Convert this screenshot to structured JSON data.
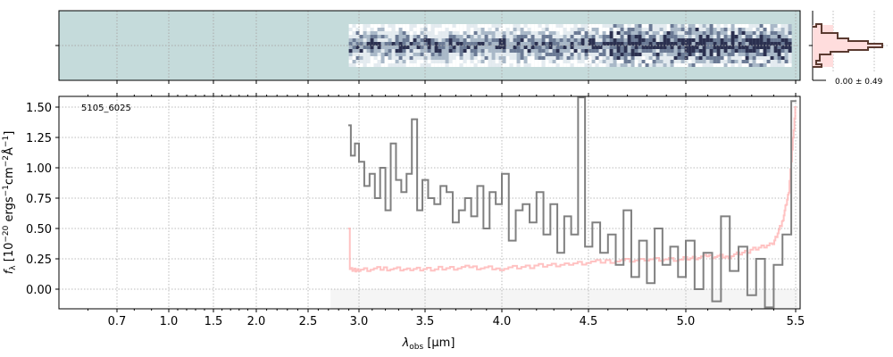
{
  "chart_data": {
    "type": "line",
    "object_label": "5105_6025",
    "xlabel": "λobs [μm]",
    "xlabel_parts": {
      "main": "λ",
      "sub": "obs",
      "unit": " [μm]"
    },
    "ylabel": "fλ [10^-20 ergs^-1 cm^-2 Å^-1]",
    "ylabel_parts": {
      "f": "f",
      "fsub": "λ",
      "a": " [10",
      "e1": "−20",
      "b": " ergs",
      "e2": "−1",
      "c": "cm",
      "e3": "−2",
      "d": "Å",
      "e4": "−1",
      "e": "]"
    },
    "xticks": [
      "0.7",
      "1.0",
      "1.5",
      "2.0",
      "2.5",
      "3.0",
      "3.5",
      "4.0",
      "4.5",
      "5.0",
      "5.5"
    ],
    "yticks": [
      "0.00",
      "0.25",
      "0.50",
      "0.75",
      "1.00",
      "1.25",
      "1.50"
    ],
    "ylim": [
      -0.16,
      1.59
    ],
    "grid": true,
    "series": [
      {
        "name": "flux",
        "color": "#808080",
        "x": [
          2.9,
          2.94,
          2.98,
          3.02,
          3.06,
          3.1,
          3.14,
          3.18,
          3.22,
          3.26,
          3.3,
          3.34,
          3.38,
          3.42,
          3.46,
          3.5,
          3.54,
          3.58,
          3.62,
          3.66,
          3.7,
          3.74,
          3.78,
          3.82,
          3.86,
          3.9,
          3.94,
          3.98,
          4.02,
          4.06,
          4.1,
          4.14,
          4.18,
          4.22,
          4.26,
          4.3,
          4.34,
          4.38,
          4.42,
          4.46,
          4.5,
          4.54,
          4.58,
          4.62,
          4.66,
          4.7,
          4.74,
          4.78,
          4.82,
          4.86,
          4.9,
          4.94,
          4.98,
          5.02,
          5.06,
          5.1,
          5.14,
          5.18,
          5.22,
          5.26,
          5.3,
          5.34,
          5.38,
          5.42,
          5.46,
          5.5
        ],
        "values": [
          1.35,
          1.1,
          1.2,
          1.05,
          0.85,
          0.95,
          0.75,
          1.0,
          0.65,
          1.2,
          0.9,
          0.8,
          0.95,
          1.4,
          0.65,
          0.9,
          0.75,
          0.7,
          0.85,
          0.8,
          0.55,
          0.65,
          0.75,
          0.6,
          0.85,
          0.5,
          0.8,
          0.7,
          0.95,
          0.4,
          0.65,
          0.7,
          0.55,
          0.8,
          0.45,
          0.7,
          0.3,
          0.6,
          0.45,
          1.58,
          0.35,
          0.55,
          0.3,
          0.45,
          0.2,
          0.65,
          0.1,
          0.4,
          0.05,
          0.5,
          0.2,
          0.35,
          0.1,
          0.4,
          0.0,
          0.3,
          -0.1,
          0.6,
          0.15,
          0.35,
          -0.05,
          0.25,
          -0.15,
          0.2,
          0.45,
          1.55
        ]
      },
      {
        "name": "error",
        "color": "#ffb3b3",
        "x": [
          2.9,
          2.92,
          3.0,
          3.2,
          3.4,
          3.6,
          3.8,
          4.0,
          4.2,
          4.4,
          4.6,
          4.8,
          5.0,
          5.1,
          5.2,
          5.3,
          5.4,
          5.44,
          5.47,
          5.5
        ],
        "values": [
          0.5,
          0.16,
          0.16,
          0.17,
          0.16,
          0.17,
          0.18,
          0.17,
          0.19,
          0.21,
          0.23,
          0.24,
          0.25,
          0.27,
          0.27,
          0.32,
          0.38,
          0.55,
          0.8,
          1.5
        ]
      }
    ],
    "hist_label": "0.00 ± 0.49"
  }
}
